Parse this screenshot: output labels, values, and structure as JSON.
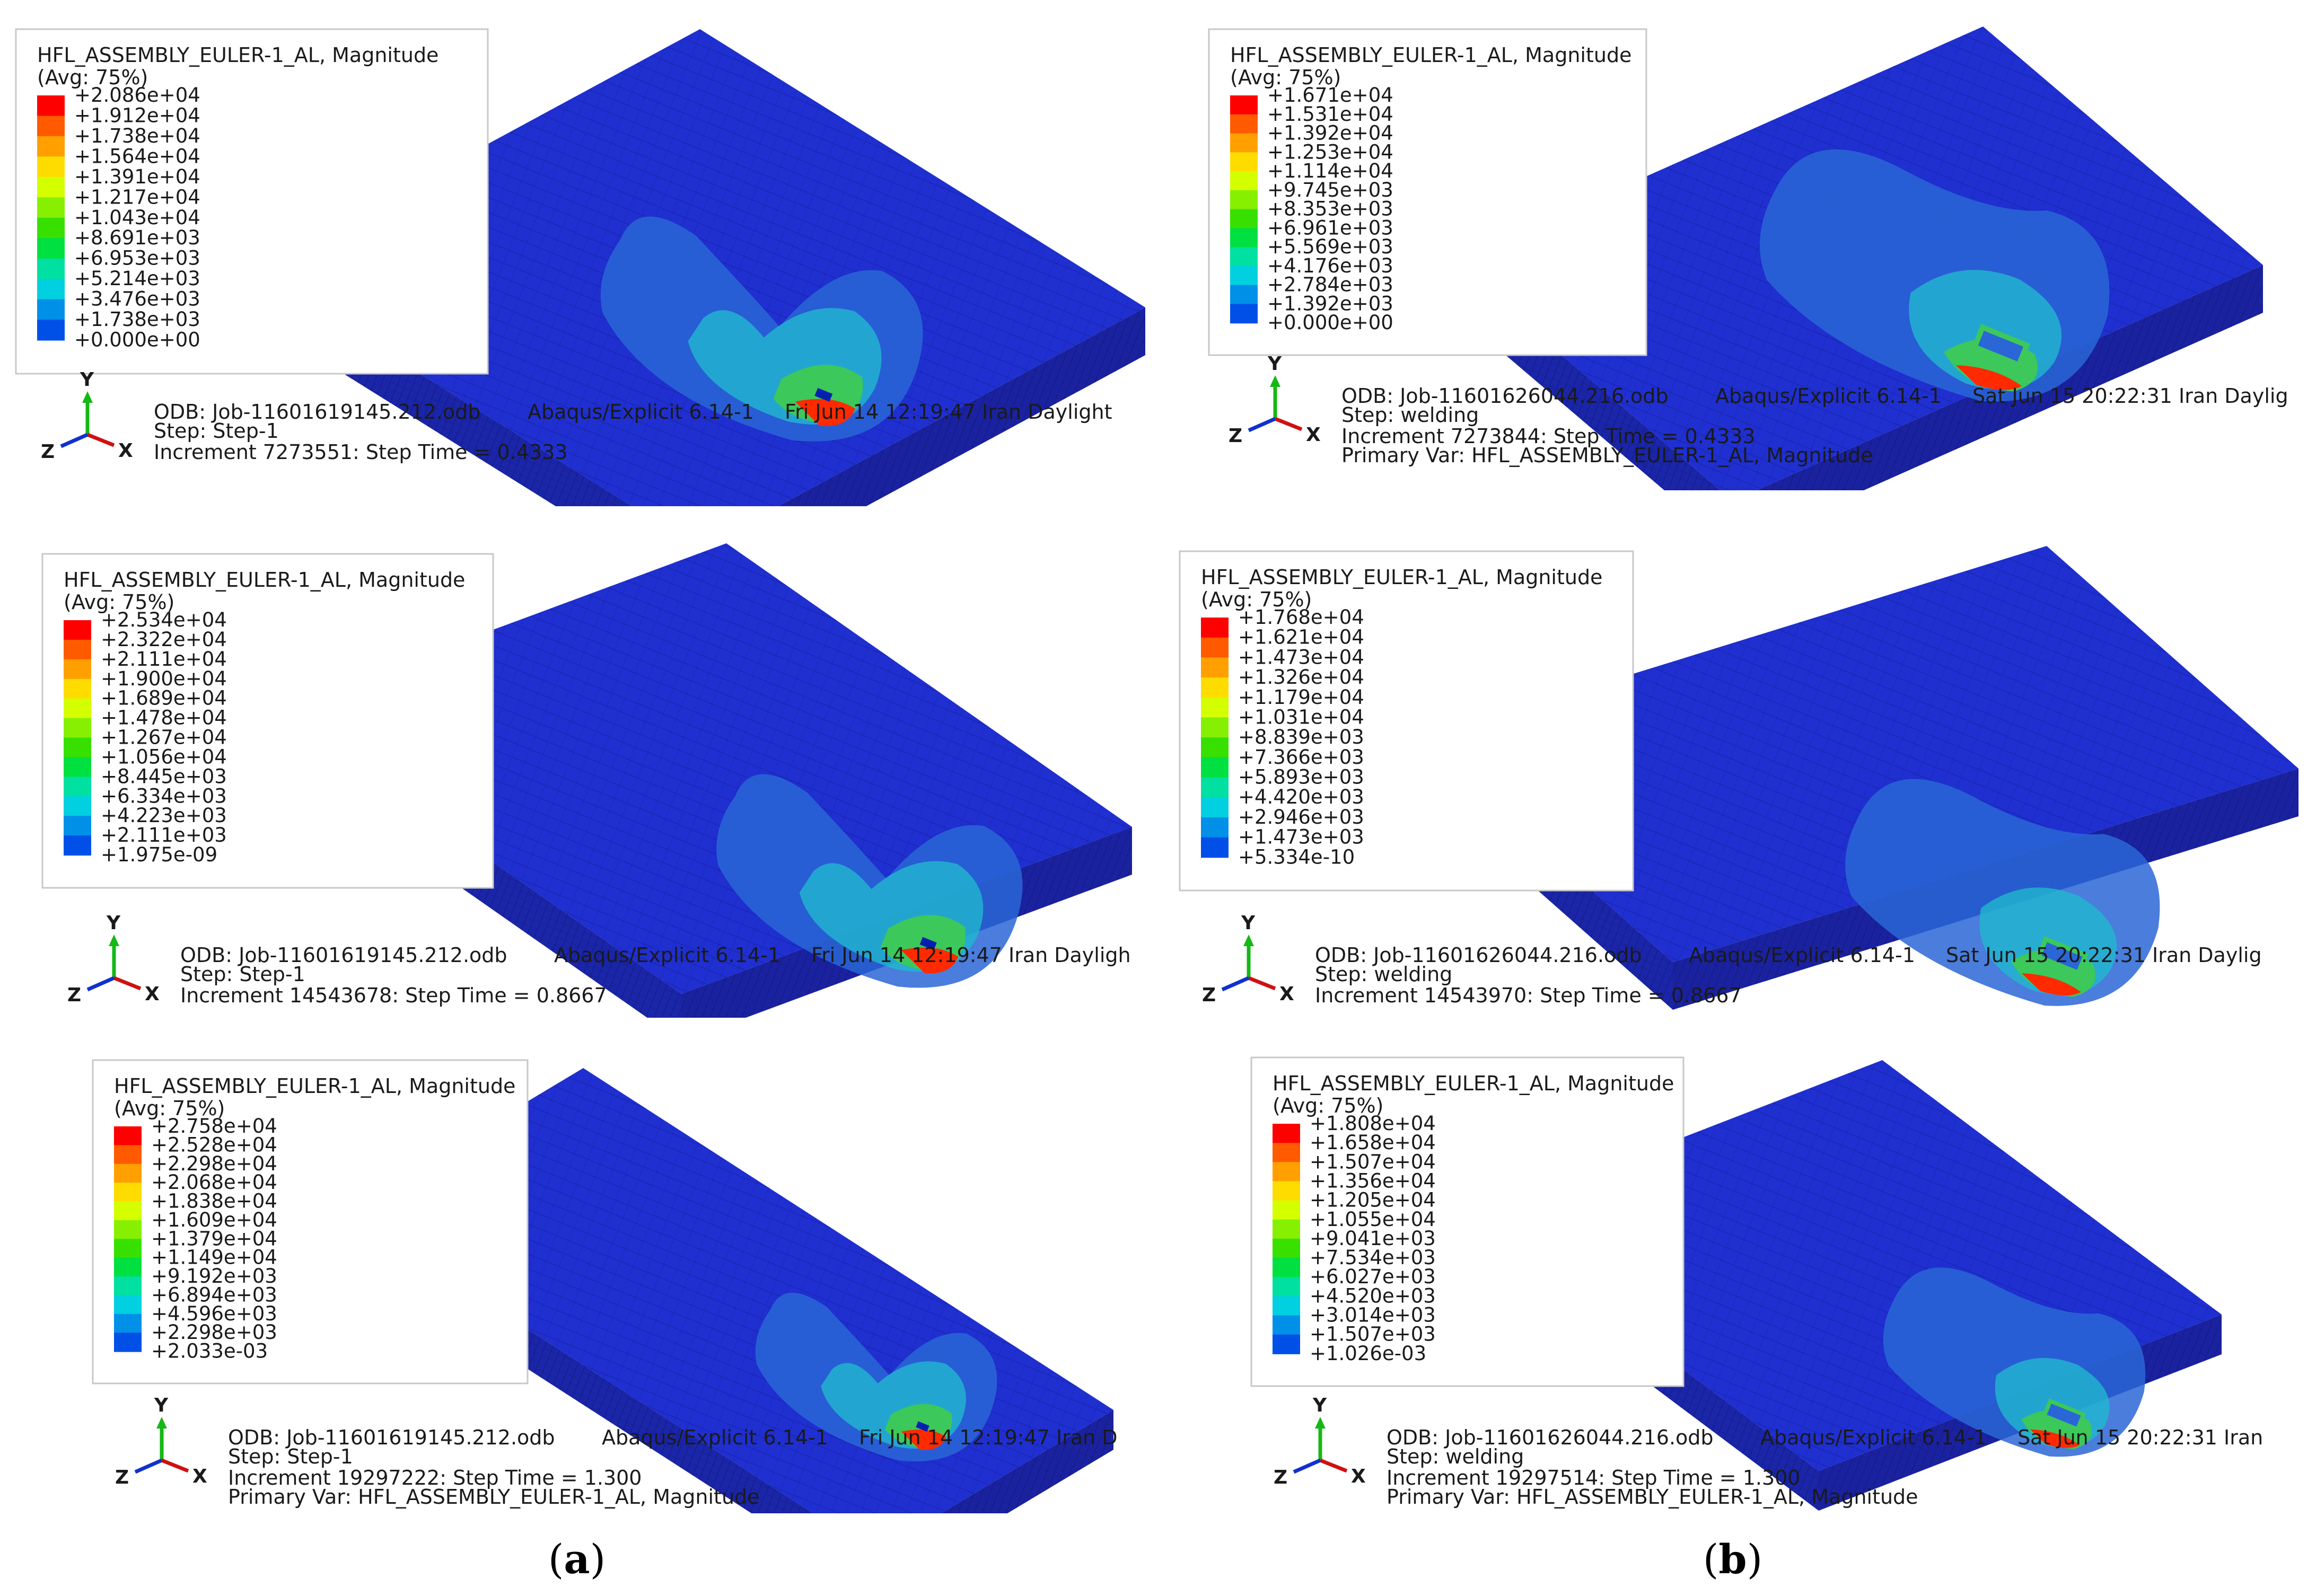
{
  "colors": {
    "plate_base": "#1f2fd0",
    "plate_dark": "#1a25a8",
    "mesh_line": "#0a1366",
    "contour_light": "#2a66d6",
    "contour_mid": "#20b8cf",
    "contour_green": "#3cc85a",
    "contour_hot": "#ff2a00",
    "colorbar": [
      "#ff0000",
      "#ff5a00",
      "#ffa000",
      "#ffdc00",
      "#d4ff00",
      "#86f000",
      "#38e000",
      "#00e040",
      "#00e0a0",
      "#00d0e0",
      "#0090e8",
      "#0050e8",
      "#0010ff"
    ]
  },
  "panels": [
    {
      "id": "a1",
      "legend": {
        "title": "HFL_ASSEMBLY_EULER-1_AL, Magnitude",
        "avg": "(Avg: 75%)",
        "values": [
          "+2.086e+04",
          "+1.912e+04",
          "+1.738e+04",
          "+1.564e+04",
          "+1.391e+04",
          "+1.217e+04",
          "+1.043e+04",
          "+8.691e+03",
          "+6.953e+03",
          "+5.214e+03",
          "+3.476e+03",
          "+1.738e+03",
          "+0.000e+00"
        ]
      },
      "info": {
        "odb": "ODB: Job-11601619145.212.odb",
        "solver": "Abaqus/Explicit 6.14-1",
        "date": "Fri Jun 14 12:19:47 Iran Daylight",
        "step": "Step: Step-1",
        "increment": "Increment    7273551: Step Time =     0.4333",
        "primary": ""
      }
    },
    {
      "id": "b1",
      "legend": {
        "title": "HFL_ASSEMBLY_EULER-1_AL, Magnitude",
        "avg": "(Avg: 75%)",
        "values": [
          "+1.671e+04",
          "+1.531e+04",
          "+1.392e+04",
          "+1.253e+04",
          "+1.114e+04",
          "+9.745e+03",
          "+8.353e+03",
          "+6.961e+03",
          "+5.569e+03",
          "+4.176e+03",
          "+2.784e+03",
          "+1.392e+03",
          "+0.000e+00"
        ]
      },
      "info": {
        "odb": "ODB: Job-11601626044.216.odb",
        "solver": "Abaqus/Explicit 6.14-1",
        "date": "Sat Jun 15 20:22:31 Iran Daylig",
        "step": "Step: welding",
        "increment": "Increment    7273844: Step Time =     0.4333",
        "primary": "Primary Var: HFL_ASSEMBLY_EULER-1_AL, Magnitude"
      }
    },
    {
      "id": "a2",
      "legend": {
        "title": "HFL_ASSEMBLY_EULER-1_AL, Magnitude",
        "avg": "(Avg: 75%)",
        "values": [
          "+2.534e+04",
          "+2.322e+04",
          "+2.111e+04",
          "+1.900e+04",
          "+1.689e+04",
          "+1.478e+04",
          "+1.267e+04",
          "+1.056e+04",
          "+8.445e+03",
          "+6.334e+03",
          "+4.223e+03",
          "+2.111e+03",
          "+1.975e-09"
        ]
      },
      "info": {
        "odb": "ODB: Job-11601619145.212.odb",
        "solver": "Abaqus/Explicit 6.14-1",
        "date": "Fri Jun 14 12:19:47 Iran Dayligh",
        "step": "Step: Step-1",
        "increment": "Increment    14543678: Step Time =     0.8667",
        "primary": ""
      }
    },
    {
      "id": "b2",
      "legend": {
        "title": "HFL_ASSEMBLY_EULER-1_AL, Magnitude",
        "avg": "(Avg: 75%)",
        "values": [
          "+1.768e+04",
          "+1.621e+04",
          "+1.473e+04",
          "+1.326e+04",
          "+1.179e+04",
          "+1.031e+04",
          "+8.839e+03",
          "+7.366e+03",
          "+5.893e+03",
          "+4.420e+03",
          "+2.946e+03",
          "+1.473e+03",
          "+5.334e-10"
        ]
      },
      "info": {
        "odb": "ODB: Job-11601626044.216.odb",
        "solver": "Abaqus/Explicit 6.14-1",
        "date": "Sat Jun 15 20:22:31 Iran Daylig",
        "step": "Step: welding",
        "increment": "Increment    14543970: Step Time =     0.8667",
        "primary": ""
      }
    },
    {
      "id": "a3",
      "legend": {
        "title": "HFL_ASSEMBLY_EULER-1_AL, Magnitude",
        "avg": "(Avg: 75%)",
        "values": [
          "+2.758e+04",
          "+2.528e+04",
          "+2.298e+04",
          "+2.068e+04",
          "+1.838e+04",
          "+1.609e+04",
          "+1.379e+04",
          "+1.149e+04",
          "+9.192e+03",
          "+6.894e+03",
          "+4.596e+03",
          "+2.298e+03",
          "+2.033e-03"
        ]
      },
      "info": {
        "odb": "ODB: Job-11601619145.212.odb",
        "solver": "Abaqus/Explicit 6.14-1",
        "date": "Fri Jun 14 12:19:47 Iran D",
        "step": "Step: Step-1",
        "increment": "Increment    19297222: Step Time =     1.300",
        "primary": "Primary Var: HFL_ASSEMBLY_EULER-1_AL, Magnitude"
      }
    },
    {
      "id": "b3",
      "legend": {
        "title": "HFL_ASSEMBLY_EULER-1_AL, Magnitude",
        "avg": "(Avg: 75%)",
        "values": [
          "+1.808e+04",
          "+1.658e+04",
          "+1.507e+04",
          "+1.356e+04",
          "+1.205e+04",
          "+1.055e+04",
          "+9.041e+03",
          "+7.534e+03",
          "+6.027e+03",
          "+4.520e+03",
          "+3.014e+03",
          "+1.507e+03",
          "+1.026e-03"
        ]
      },
      "info": {
        "odb": "ODB: Job-11601626044.216.odb",
        "solver": "Abaqus/Explicit 6.14-1",
        "date": "Sat Jun 15 20:22:31 Iran",
        "step": "Step: welding",
        "increment": "Increment    19297514: Step Time =     1.300",
        "primary": "Primary Var: HFL_ASSEMBLY_EULER-1_AL, Magnitude"
      }
    }
  ],
  "triad": {
    "x": "X",
    "y": "Y",
    "z": "Z"
  },
  "captions": {
    "a": "a",
    "b": "b"
  }
}
